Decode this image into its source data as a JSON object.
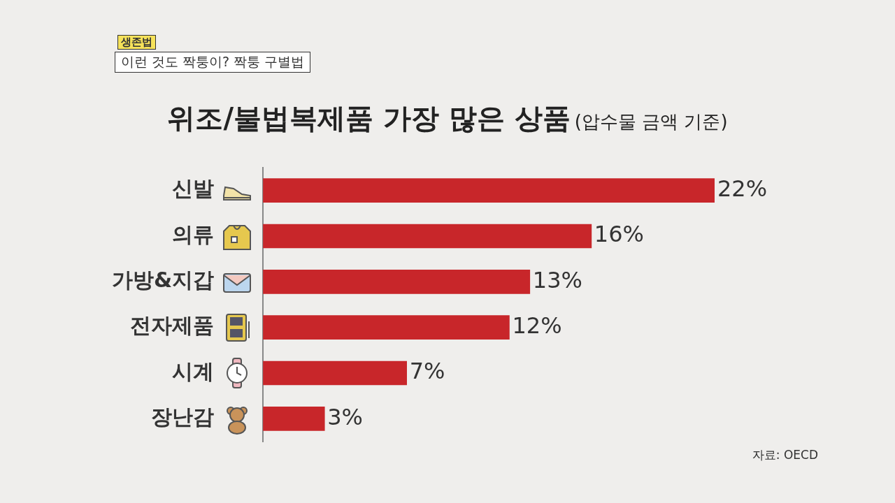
{
  "chart_data": {
    "type": "bar",
    "orientation": "horizontal",
    "title": "위조/불법복제품 가장 많은 상품",
    "subtitle": "(압수물 금액 기준)",
    "categories": [
      "신발",
      "의류",
      "가방&지갑",
      "전자제품",
      "시계",
      "장난감"
    ],
    "values": [
      22,
      16,
      13,
      12,
      7,
      3
    ],
    "value_labels": [
      "22%",
      "16%",
      "13%",
      "12%",
      "7%",
      "3%"
    ],
    "color": "#c8262a",
    "annotations": [
      "생존법",
      "이런 것도 짝퉁이? 짝퉁 구별법",
      "자료: OECD"
    ]
  }
}
